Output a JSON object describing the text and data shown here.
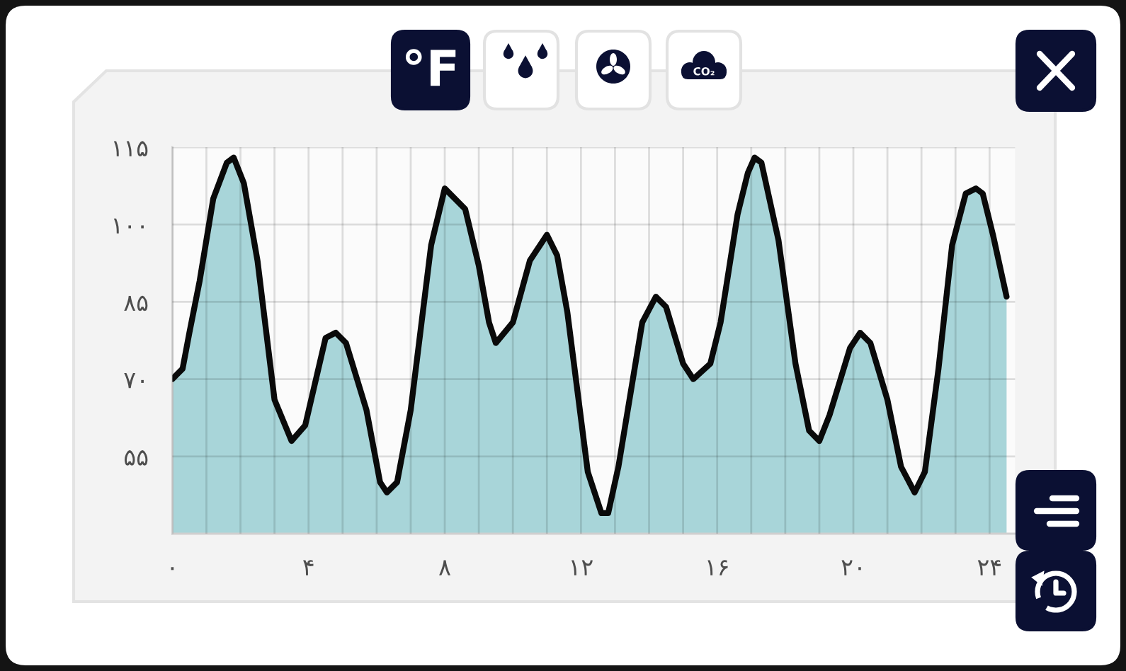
{
  "chart_data": {
    "type": "area",
    "x": [
      0,
      0.3,
      0.5,
      0.8,
      1.2,
      1.6,
      1.8,
      2.1,
      2.5,
      3.0,
      3.5,
      3.9,
      4.5,
      4.8,
      5.1,
      5.7,
      6.1,
      6.3,
      6.6,
      7.0,
      7.6,
      8.0,
      8.6,
      9.0,
      9.3,
      9.5,
      10.0,
      10.5,
      11.0,
      11.3,
      11.6,
      12.2,
      12.6,
      12.8,
      13.1,
      13.8,
      14.2,
      14.5,
      15.0,
      15.3,
      15.8,
      16.1,
      16.6,
      16.9,
      17.1,
      17.3,
      17.8,
      18.3,
      18.7,
      19.0,
      19.3,
      19.9,
      20.2,
      20.5,
      21.0,
      21.4,
      21.8,
      22.1,
      22.5,
      22.9,
      23.3,
      23.6,
      23.8,
      24.1,
      24.5
    ],
    "series": [
      {
        "color": "#a8d5d9",
        "values": [
          70,
          72,
          79,
          89,
          105,
          112,
          113,
          108,
          93,
          66,
          58,
          61,
          78,
          79,
          77,
          64,
          50,
          48,
          50,
          64,
          96,
          107,
          103,
          92,
          81,
          77,
          81,
          93,
          98,
          94,
          83,
          52,
          44,
          44,
          53,
          81,
          86,
          84,
          73,
          70,
          73,
          81,
          102,
          110,
          113,
          112,
          97,
          73,
          60,
          58,
          63,
          76,
          79,
          77,
          66,
          53,
          48,
          52,
          72,
          96,
          106,
          107,
          106,
          98,
          86
        ]
      }
    ],
    "xlim": [
      0,
      24.75
    ],
    "xticks": [
      {
        "value": 0,
        "label": "۰"
      },
      {
        "value": 1,
        "label": null
      },
      {
        "value": 2,
        "label": null
      },
      {
        "value": 3,
        "label": null
      },
      {
        "value": 4,
        "label": "۴"
      },
      {
        "value": 5,
        "label": null
      },
      {
        "value": 6,
        "label": null
      },
      {
        "value": 7,
        "label": null
      },
      {
        "value": 8,
        "label": "۸"
      },
      {
        "value": 9,
        "label": null
      },
      {
        "value": 10,
        "label": null
      },
      {
        "value": 11,
        "label": null
      },
      {
        "value": 12,
        "label": "۱۲"
      },
      {
        "value": 13,
        "label": null
      },
      {
        "value": 14,
        "label": null
      },
      {
        "value": 15,
        "label": null
      },
      {
        "value": 16,
        "label": "۱۶"
      },
      {
        "value": 17,
        "label": null
      },
      {
        "value": 18,
        "label": null
      },
      {
        "value": 19,
        "label": null
      },
      {
        "value": 20,
        "label": "۲۰"
      },
      {
        "value": 21,
        "label": null
      },
      {
        "value": 22,
        "label": null
      },
      {
        "value": 23,
        "label": null
      },
      {
        "value": 24,
        "label": "۲۴"
      }
    ],
    "ylim": [
      40,
      115
    ],
    "yticks": [
      {
        "value": 55,
        "label": "۵۵"
      },
      {
        "value": 70,
        "label": "۷۰"
      },
      {
        "value": 85,
        "label": "۸۵"
      },
      {
        "value": 100,
        "label": "۱۰۰"
      },
      {
        "value": 115,
        "label": "۱۱۵"
      }
    ],
    "grid": true,
    "line_style": "solid",
    "annotations": [
      "°F",
      "CO₂"
    ]
  }
}
